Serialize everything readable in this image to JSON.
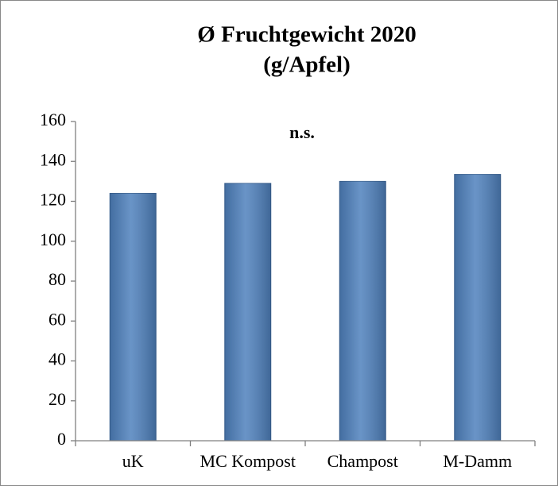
{
  "chart_data": {
    "type": "bar",
    "title": "Ø Fruchtgewicht 2020",
    "subtitle": "(g/Apfel)",
    "annotation": "n.s.",
    "categories": [
      "uK",
      "MC Kompost",
      "Champost",
      "M-Damm"
    ],
    "values": [
      124,
      129,
      130,
      133.5
    ],
    "color": "#4f81bd",
    "ylim": [
      0,
      160
    ],
    "yticks": [
      0,
      20,
      40,
      60,
      80,
      100,
      120,
      140,
      160
    ],
    "grid": false
  }
}
